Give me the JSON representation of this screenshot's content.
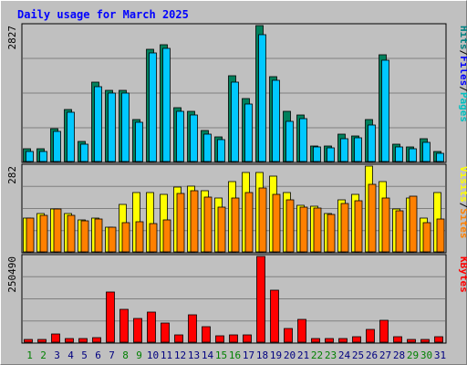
{
  "chart_data": {
    "type": "bar",
    "title": "Daily usage for March 2025",
    "categories": [
      "1",
      "2",
      "3",
      "4",
      "5",
      "6",
      "7",
      "8",
      "9",
      "10",
      "11",
      "12",
      "13",
      "14",
      "15",
      "16",
      "17",
      "18",
      "19",
      "20",
      "21",
      "22",
      "23",
      "24",
      "25",
      "26",
      "27",
      "28",
      "29",
      "30",
      "31"
    ],
    "weekend_days": [
      "1",
      "2",
      "8",
      "9",
      "15",
      "16",
      "22",
      "23",
      "29",
      "30"
    ],
    "panels": [
      {
        "name": "pages-files-hits",
        "max_label": "2827",
        "ymax": 2827,
        "legend": [
          {
            "text": "Pages",
            "color": "#00c0c0"
          },
          {
            "text": "/",
            "color": "#000000"
          },
          {
            "text": "Files",
            "color": "#0000ff"
          },
          {
            "text": "/",
            "color": "#000000"
          },
          {
            "text": "Hits",
            "color": "#008080"
          }
        ],
        "series": [
          {
            "name": "Hits",
            "color": "#00805c",
            "values": [
              260,
              260,
              680,
              1080,
              420,
              1660,
              1480,
              1480,
              880,
              2330,
              2420,
              1110,
              1040,
              640,
              520,
              1790,
              1300,
              2827,
              1760,
              1040,
              960,
              330,
              330,
              560,
              540,
              880,
              2220,
              360,
              310,
              480,
              210
            ]
          },
          {
            "name": "Files",
            "color": "#0000ff",
            "values": [
              140,
              140,
              380,
              640,
              260,
              840,
              780,
              860,
              520,
              1380,
              1460,
              740,
              720,
              480,
              360,
              1040,
              880,
              2150,
              1120,
              720,
              620,
              240,
              240,
              380,
              380,
              560,
              1380,
              260,
              220,
              300,
              150
            ]
          },
          {
            "name": "Pages",
            "color": "#00c8ff",
            "values": [
              210,
              210,
              620,
              1020,
              360,
              1560,
              1420,
              1420,
              820,
              2250,
              2350,
              1040,
              960,
              560,
              450,
              1650,
              1190,
              2640,
              1690,
              830,
              900,
              300,
              290,
              480,
              500,
              760,
              2100,
              310,
              270,
              390,
              180
            ]
          }
        ]
      },
      {
        "name": "visits-sites",
        "max_label": "282",
        "ymax": 282,
        "legend": [
          {
            "text": "Sites",
            "color": "#ff8000"
          },
          {
            "text": "/",
            "color": "#000000"
          },
          {
            "text": "Visits",
            "color": "#ffff00"
          }
        ],
        "series": [
          {
            "name": "Visits",
            "color": "#ffff00",
            "values": [
              112,
              125,
              140,
              125,
              105,
              112,
              82,
              155,
              196,
              196,
              190,
              212,
              215,
              200,
              178,
              232,
              261,
              261,
              250,
              196,
              153,
              150,
              125,
              170,
              190,
              282,
              232,
              142,
              178,
              112,
              196
            ]
          },
          {
            "name": "Sites",
            "color": "#ff8000",
            "values": [
              110,
              120,
              142,
              120,
              102,
              108,
              80,
              96,
              98,
              92,
              104,
              192,
              200,
              180,
              146,
              178,
              196,
              210,
              190,
              172,
              148,
              144,
              122,
              160,
              168,
              222,
              176,
              134,
              182,
              96,
              108
            ]
          }
        ]
      },
      {
        "name": "kbytes",
        "max_label": "250490",
        "ymax": 250490,
        "legend": [
          {
            "text": "KBytes",
            "color": "#ff0000"
          }
        ],
        "series": [
          {
            "name": "KBytes",
            "color": "#ff0000",
            "values": [
              7000,
              7000,
              24000,
              11000,
              11000,
              14000,
              147000,
              97000,
              69000,
              88000,
              56000,
              20000,
              79000,
              46000,
              19000,
              21000,
              21000,
              250490,
              153000,
              40000,
              67000,
              10000,
              10000,
              10000,
              17000,
              38000,
              63000,
              16000,
              9000,
              9000,
              17000
            ]
          }
        ]
      }
    ]
  }
}
